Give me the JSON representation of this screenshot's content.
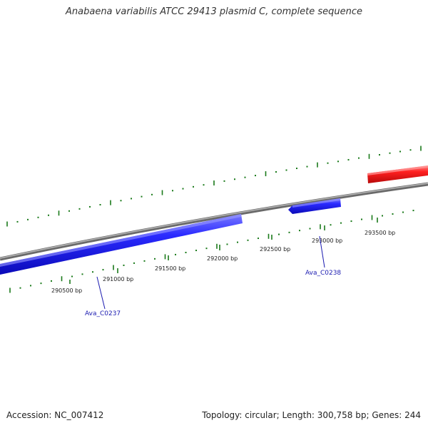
{
  "title": "Anabaena variabilis ATCC 29413 plasmid C, complete sequence",
  "footer": {
    "accession": "Accession: NC_007412",
    "summary": "Topology: circular; Length: 300,758 bp; Genes: 244"
  },
  "colors": {
    "backbone": "#8a8a8a",
    "tick": "#1a7a1a",
    "forward_gene": "#e81818",
    "reverse_gene": "#1a1ae0",
    "label": "#1a1ab0"
  },
  "bp_ticks": [
    {
      "bp": 290500,
      "label": "290500 bp"
    },
    {
      "bp": 291000,
      "label": "291000 bp"
    },
    {
      "bp": 291500,
      "label": "291500 bp"
    },
    {
      "bp": 292000,
      "label": "292000 bp"
    },
    {
      "bp": 292500,
      "label": "292500 bp"
    },
    {
      "bp": 293000,
      "label": "293000 bp"
    },
    {
      "bp": 293500,
      "label": "293500 bp"
    }
  ],
  "genes": [
    {
      "name": "Ava_C0237",
      "strand": "reverse",
      "label": "Ava_C0237"
    },
    {
      "name": "Ava_C0238",
      "strand": "reverse",
      "label": "Ava_C0238"
    },
    {
      "name": "unlabeled-forward-gene",
      "strand": "forward",
      "label": ""
    }
  ]
}
